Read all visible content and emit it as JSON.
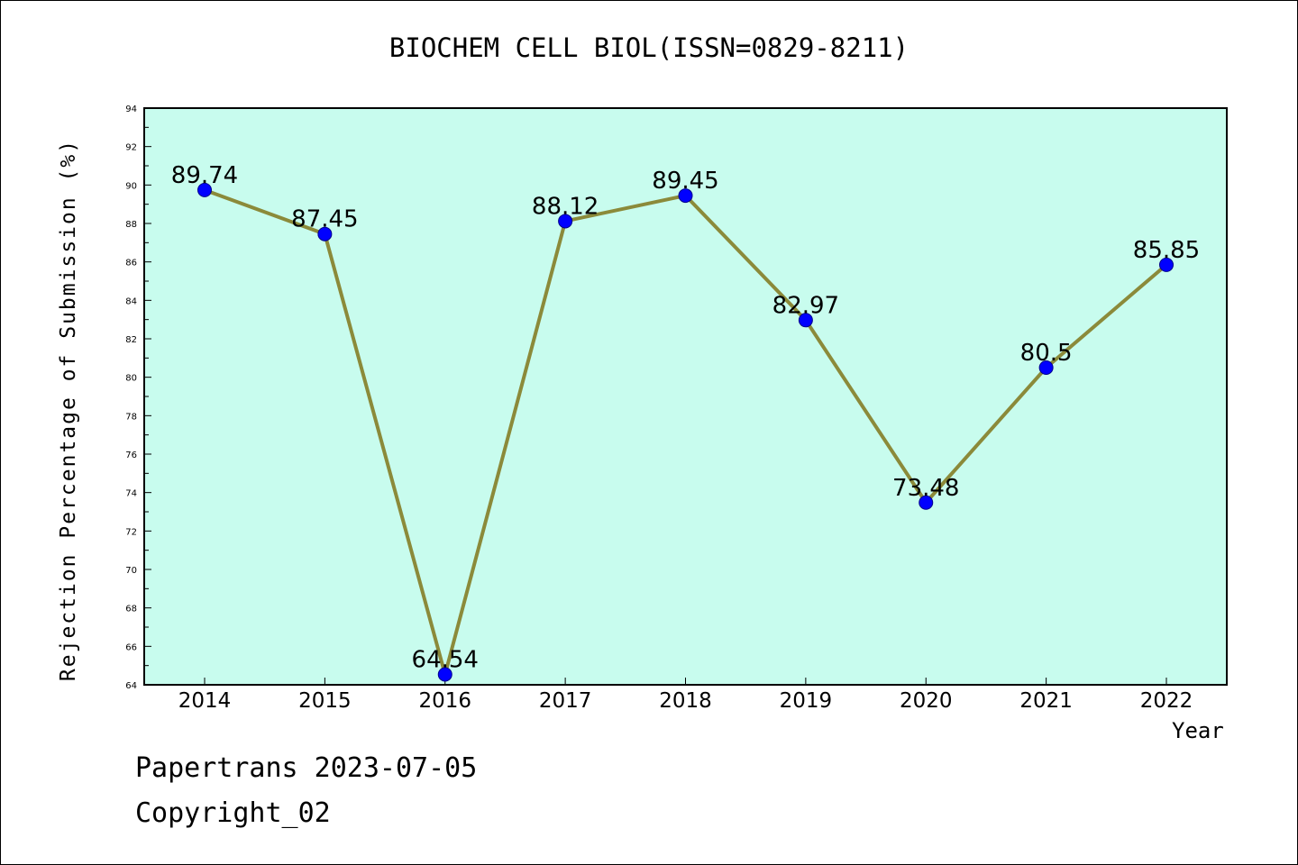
{
  "chart_data": {
    "type": "line",
    "title": "BIOCHEM CELL BIOL(ISSN=0829-8211)",
    "xlabel": "Year",
    "ylabel": "Rejection Percentage of Submission (%)",
    "categories": [
      "2014",
      "2015",
      "2016",
      "2017",
      "2018",
      "2019",
      "2020",
      "2021",
      "2022"
    ],
    "values": [
      89.74,
      87.45,
      64.54,
      88.12,
      89.45,
      82.97,
      73.48,
      80.5,
      85.85
    ],
    "data_labels": [
      "89.74",
      "87.45",
      "64.54",
      "88.12",
      "89.45",
      "82.97",
      "73.48",
      "80.5",
      "85.85"
    ],
    "ylim": [
      64,
      94
    ],
    "yticks": [
      64,
      66,
      68,
      70,
      72,
      74,
      76,
      78,
      80,
      82,
      84,
      86,
      88,
      90,
      92,
      94
    ],
    "grid": false,
    "colors": {
      "plot_background": "#c8fcee",
      "line": "#8b8a3a",
      "marker": "#0000ff"
    }
  },
  "footer": {
    "line1": "Papertrans 2023-07-05",
    "line2": "Copyright_02"
  }
}
